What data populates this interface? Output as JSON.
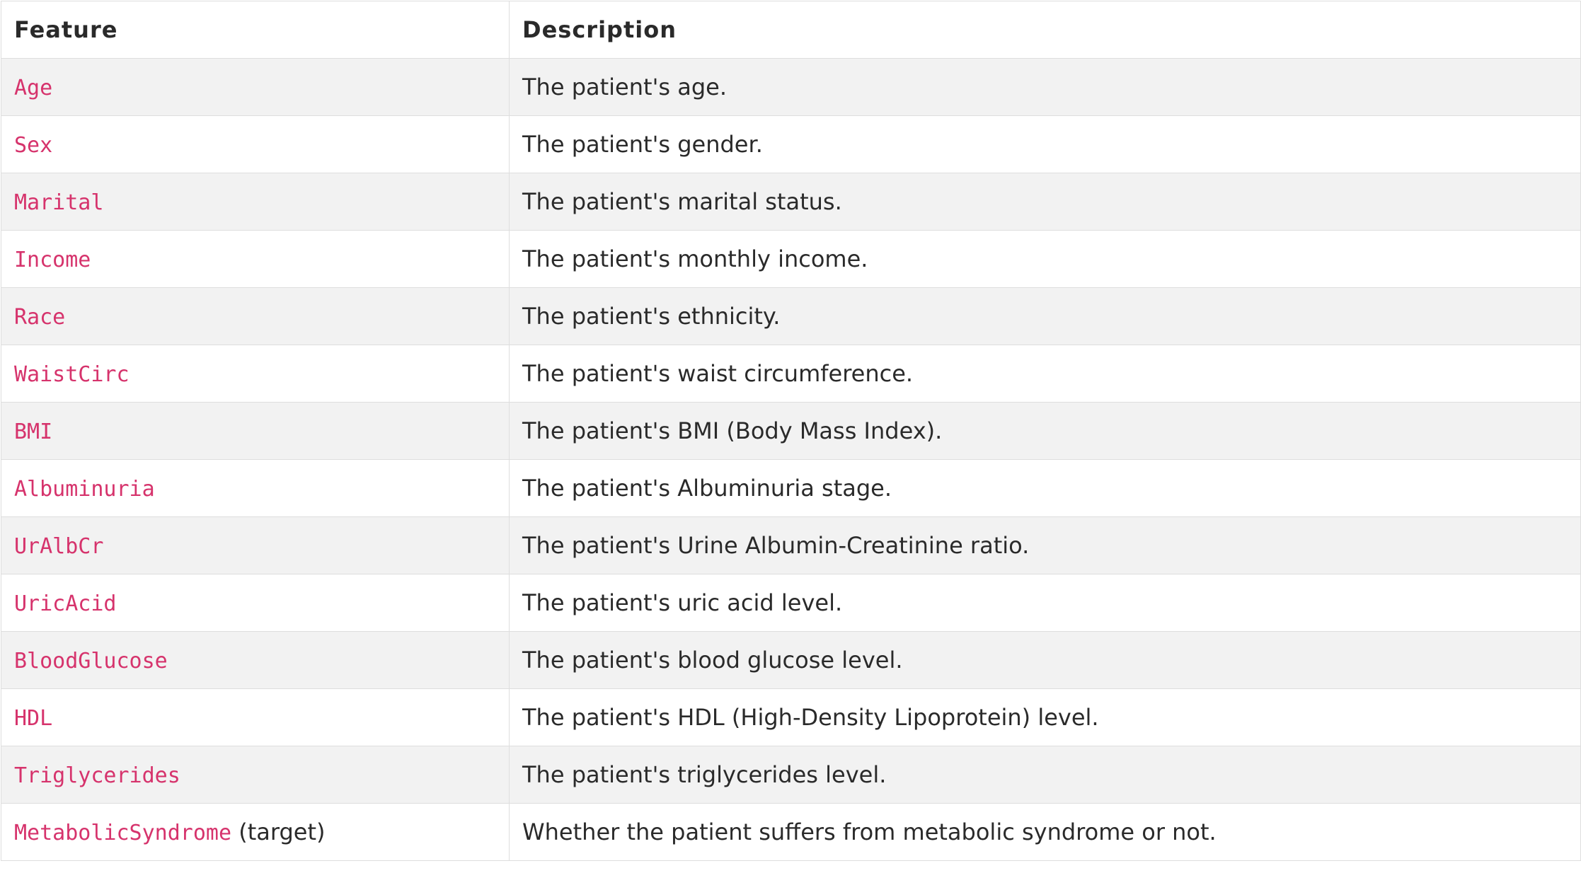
{
  "table": {
    "headers": {
      "feature": "Feature",
      "description": "Description"
    },
    "accent_color": "#d6336c",
    "rows": [
      {
        "feature": "Age",
        "suffix": "",
        "description": "The patient's age."
      },
      {
        "feature": "Sex",
        "suffix": "",
        "description": "The patient's gender."
      },
      {
        "feature": "Marital",
        "suffix": "",
        "description": "The patient's marital status."
      },
      {
        "feature": "Income",
        "suffix": "",
        "description": "The patient's monthly income."
      },
      {
        "feature": "Race",
        "suffix": "",
        "description": "The patient's ethnicity."
      },
      {
        "feature": "WaistCirc",
        "suffix": "",
        "description": "The patient's waist circumference."
      },
      {
        "feature": "BMI",
        "suffix": "",
        "description": "The patient's BMI (Body Mass Index)."
      },
      {
        "feature": "Albuminuria",
        "suffix": "",
        "description": "The patient's Albuminuria stage."
      },
      {
        "feature": "UrAlbCr",
        "suffix": "",
        "description": "The patient's Urine Albumin-Creatinine ratio."
      },
      {
        "feature": "UricAcid",
        "suffix": "",
        "description": "The patient's uric acid level."
      },
      {
        "feature": "BloodGlucose",
        "suffix": "",
        "description": "The patient's blood glucose level."
      },
      {
        "feature": "HDL",
        "suffix": "",
        "description": "The patient's HDL (High-Density Lipoprotein) level."
      },
      {
        "feature": "Triglycerides",
        "suffix": "",
        "description": "The patient's triglycerides level."
      },
      {
        "feature": "MetabolicSyndrome",
        "suffix": " (target)",
        "description": "Whether the patient suffers from metabolic syndrome or not."
      }
    ]
  }
}
